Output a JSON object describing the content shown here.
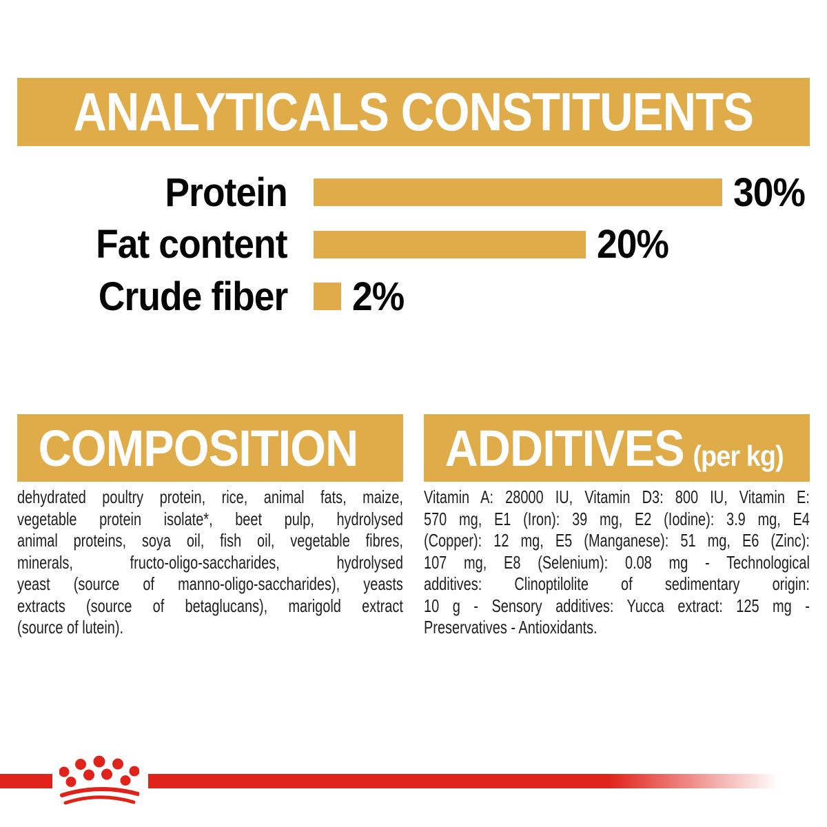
{
  "header": {
    "title": "ANALYTICALS CONSTITUENTS"
  },
  "chart_data": {
    "type": "bar",
    "orientation": "horizontal",
    "title": "ANALYTICALS CONSTITUENTS",
    "categories": [
      "Protein",
      "Fat content",
      "Crude fiber"
    ],
    "values": [
      30,
      20,
      2
    ],
    "value_labels": [
      "30%",
      "20%",
      "2%"
    ],
    "unit": "%",
    "xlim": [
      0,
      30
    ],
    "grid": false,
    "legend": false,
    "bar_color": "#DFAC49",
    "label_color": "#050505"
  },
  "composition": {
    "heading": "COMPOSITION",
    "lines": [
      "dehydrated poultry protein, rice, animal fats, maize,",
      "vegetable protein isolate*, beet pulp, hydrolysed",
      "animal proteins, soya oil, fish oil, vegetable fibres,",
      "minerals, fructo-oligo-saccharides, hydrolysed",
      "yeast (source of manno-oligo-saccharides), yeasts",
      "extracts (source of betaglucans), marigold extract",
      "(source of lutein)."
    ]
  },
  "additives": {
    "heading": "ADDITIVES",
    "heading_suffix": "(per kg)",
    "lines": [
      "Vitamin A: 28000 IU, Vitamin D3: 800 IU, Vitamin E:",
      "570 mg, E1 (Iron): 39 mg, E2 (Iodine): 3.9 mg, E4",
      "(Copper): 12 mg, E5 (Manganese): 51 mg, E6 (Zinc):",
      "107 mg, E8 (Selenium): 0.08 mg - Technological",
      "additives: Clinoptilolite of sedimentary origin:",
      "10 g - Sensory additives: Yucca extract: 125 mg -",
      "Preservatives - Antioxidants."
    ]
  },
  "footer": {
    "logo": "royal-canin-crown"
  },
  "colors": {
    "gold": "#DFAC49",
    "red": "#E0231A",
    "text": "#1e1e1e"
  }
}
